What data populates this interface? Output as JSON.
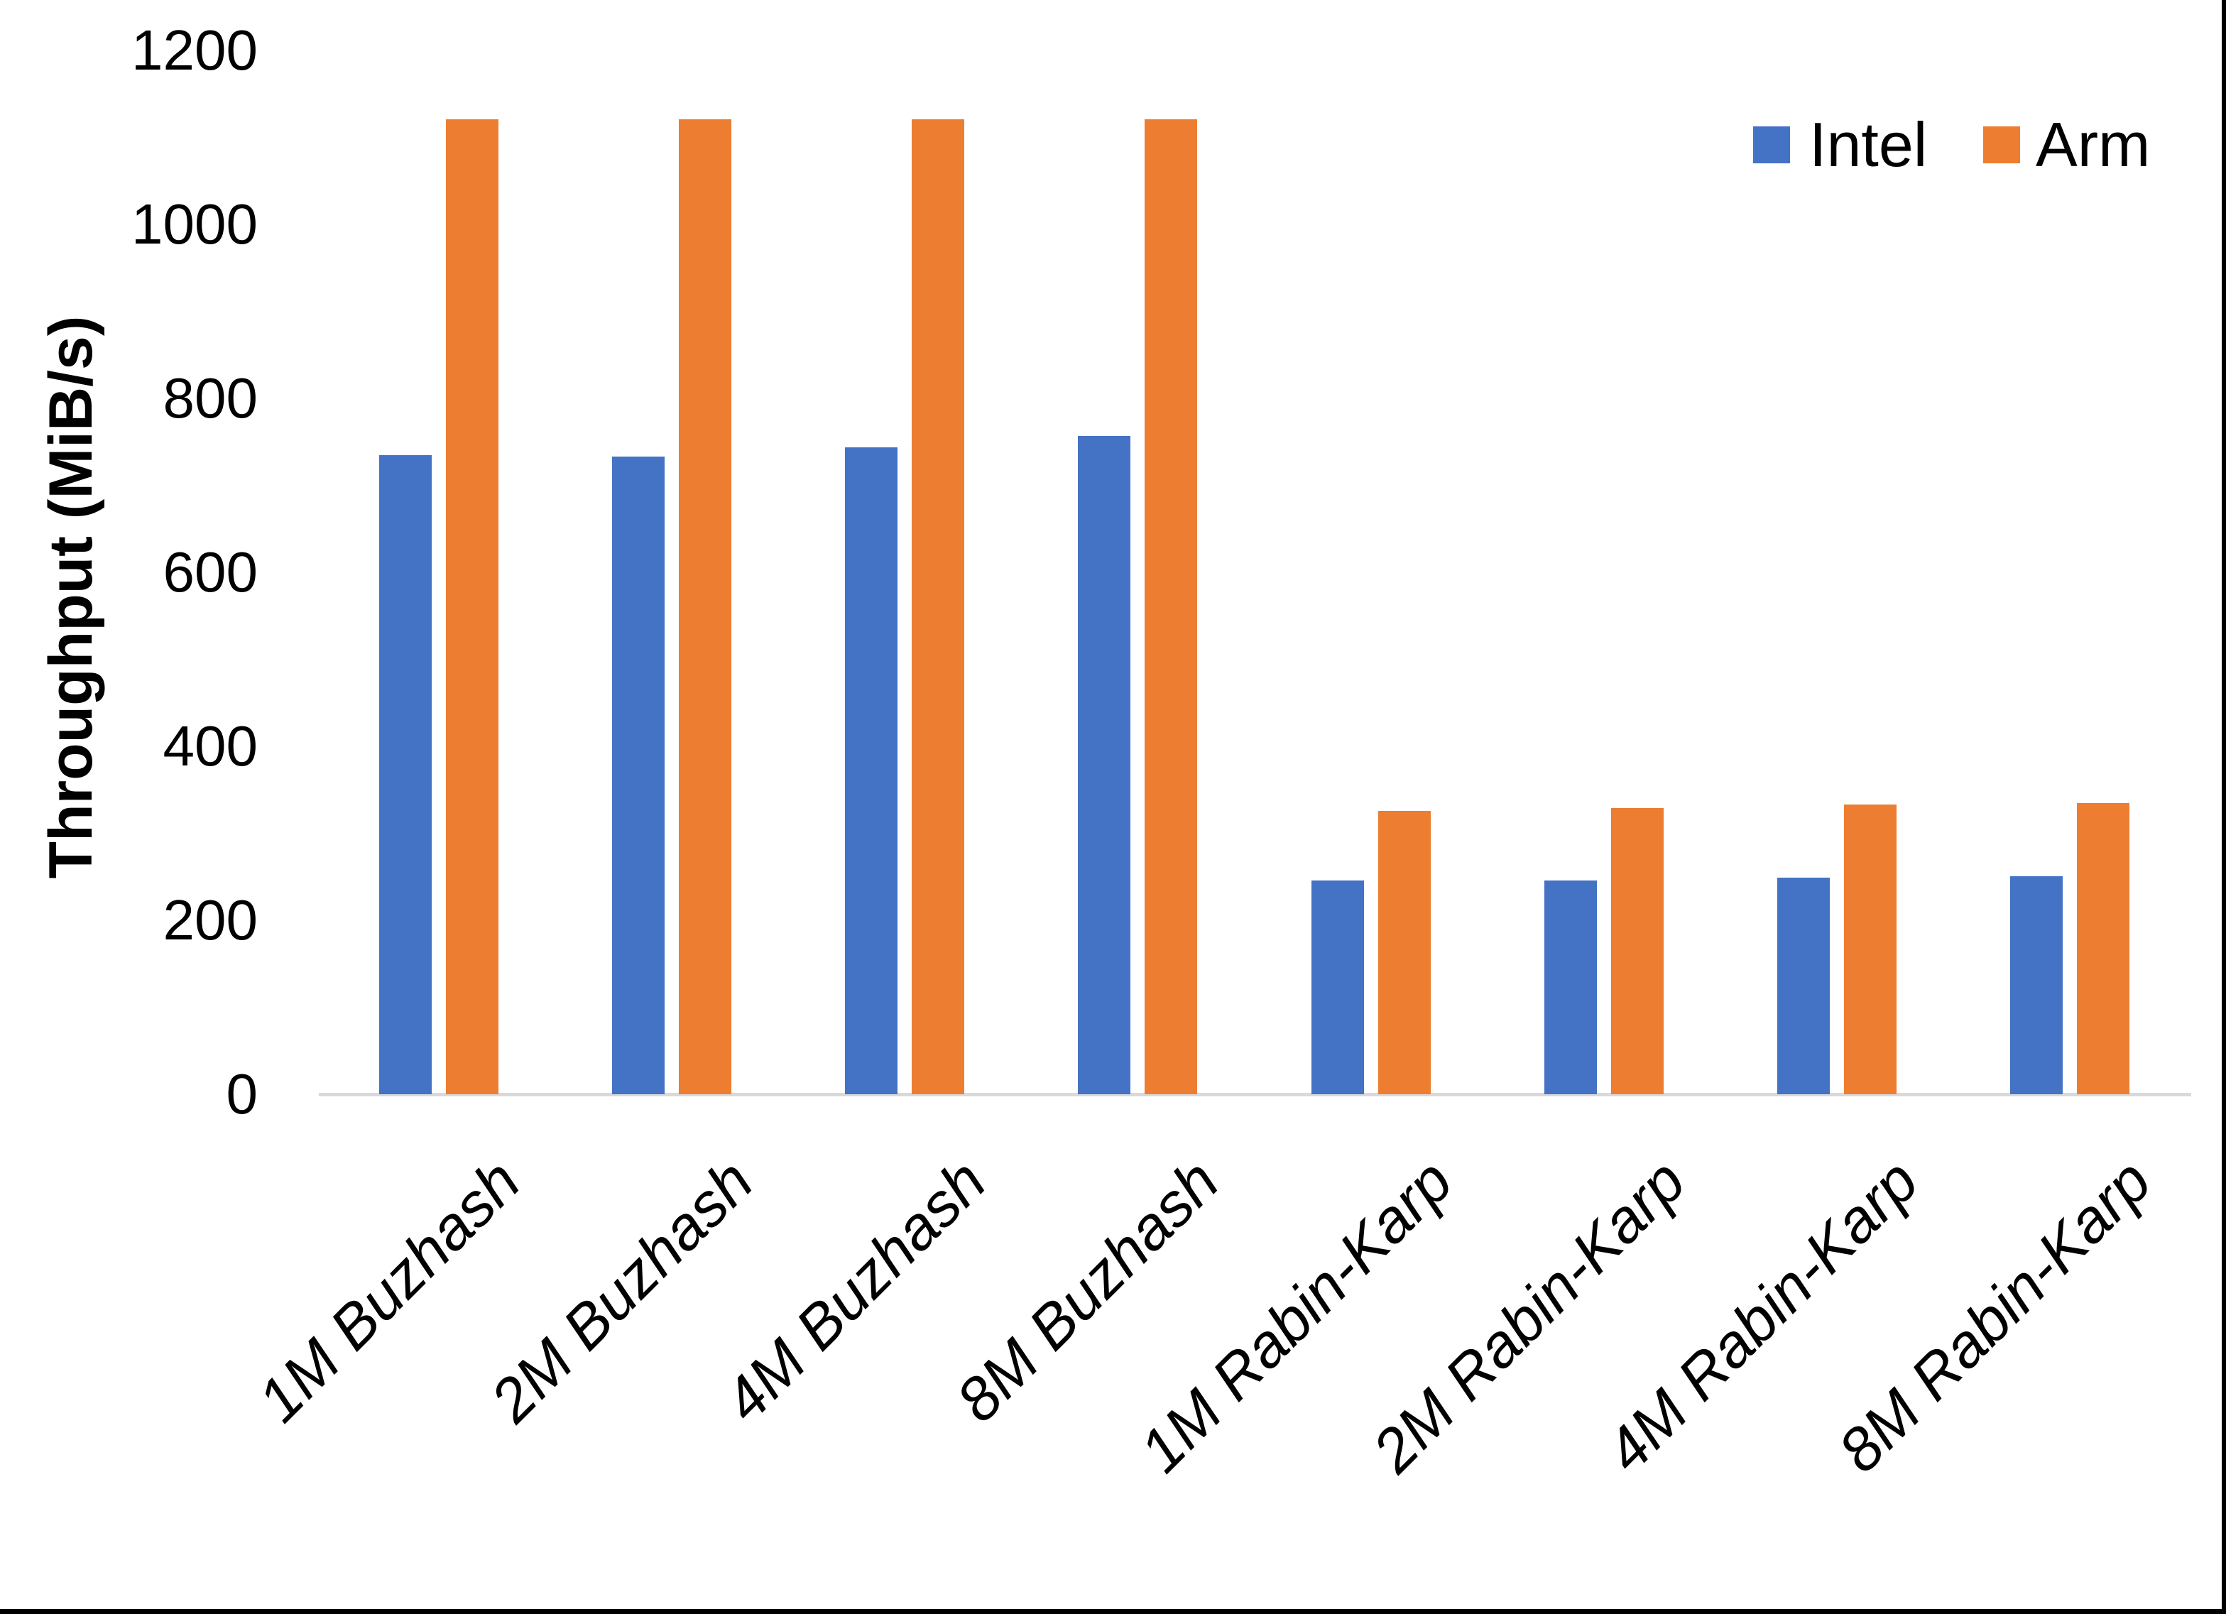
{
  "chart_data": {
    "type": "bar",
    "title": "",
    "ylabel": "Throughput (MiB/s)",
    "xlabel": "",
    "ylim": [
      0,
      1200
    ],
    "yticks": [
      0,
      200,
      400,
      600,
      800,
      1000,
      1200
    ],
    "grid": false,
    "legend_position": "top-right",
    "categories": [
      "1M Buzhash",
      "2M Buzhash",
      "4M Buzhash",
      "8M Buzhash",
      "1M Rabin-Karp",
      "2M Rabin-Karp",
      "4M Rabin-Karp",
      "8M Rabin-Karp"
    ],
    "series": [
      {
        "name": "Intel",
        "color": "#4472C4",
        "values": [
          735,
          733,
          744,
          757,
          246,
          246,
          249,
          251
        ]
      },
      {
        "name": "Arm",
        "color": "#ED7D31",
        "values": [
          1121,
          1121,
          1121,
          1121,
          326,
          329,
          333,
          335
        ]
      }
    ],
    "axis_line_color": "#D9D9D9"
  },
  "frame": {
    "right_edge_color": "#000000",
    "bottom_edge_color": "#000000"
  }
}
